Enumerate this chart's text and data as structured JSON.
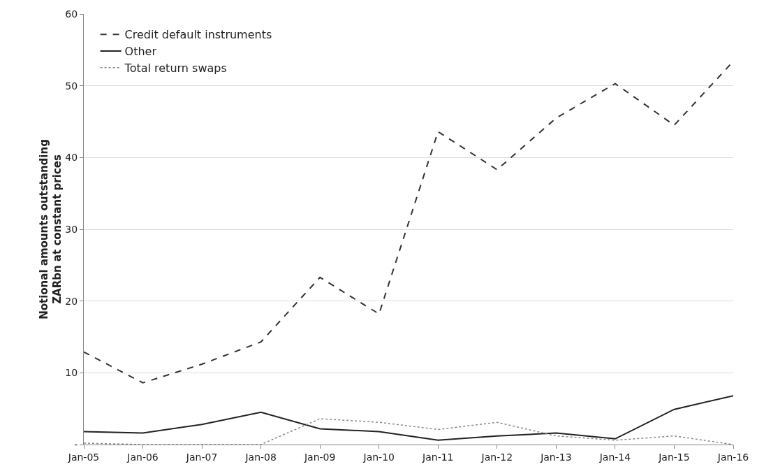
{
  "chart_data": {
    "type": "line",
    "ylabel": "Notional amounts outstanding ZARbn at constant prices",
    "categories": [
      "Jan-05",
      "Jan-06",
      "Jan-07",
      "Jan-08",
      "Jan-09",
      "Jan-10",
      "Jan-11",
      "Jan-12",
      "Jan-13",
      "Jan-14",
      "Jan-15",
      "Jan-16"
    ],
    "series": [
      {
        "name": "Credit default instruments",
        "color": "#333333",
        "line_style": "dashed",
        "values": [
          12.9,
          8.6,
          11.2,
          14.3,
          23.3,
          18.2,
          43.6,
          38.3,
          45.5,
          50.3,
          44.5,
          53.4
        ]
      },
      {
        "name": "Other",
        "color": "#222222",
        "line_style": "solid",
        "values": [
          1.8,
          1.6,
          2.8,
          4.5,
          2.2,
          1.8,
          0.6,
          1.2,
          1.6,
          0.8,
          4.9,
          6.8
        ]
      },
      {
        "name": "Total return swaps",
        "color": "#888888",
        "line_style": "dotted",
        "values": [
          0.2,
          0,
          0,
          0,
          3.6,
          3.1,
          2.1,
          3.1,
          1.2,
          0.6,
          1.2,
          0
        ]
      }
    ],
    "ylim": [
      0,
      60
    ],
    "yticks": [
      {
        "value": 0,
        "label": "-"
      },
      10,
      20,
      30,
      40,
      50,
      60
    ],
    "grid": "y",
    "legend": "top left",
    "marker": "none"
  }
}
